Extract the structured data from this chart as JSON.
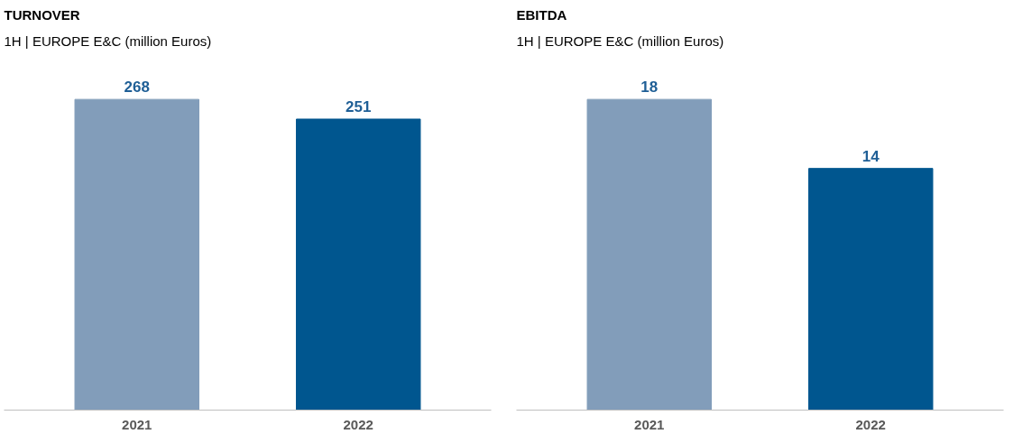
{
  "chart_data": [
    {
      "type": "bar",
      "title": "TURNOVER",
      "subtitle": "1H | EUROPE E&C (million Euros)",
      "categories": [
        "2021",
        "2022"
      ],
      "values": [
        268,
        251
      ],
      "colors": [
        "#829dba",
        "#00568f"
      ],
      "data_labels": true,
      "grid": false
    },
    {
      "type": "bar",
      "title": "EBITDA",
      "subtitle": "1H | EUROPE E&C (million Euros)",
      "categories": [
        "2021",
        "2022"
      ],
      "values": [
        18,
        14
      ],
      "colors": [
        "#829dba",
        "#00568f"
      ],
      "data_labels": true,
      "grid": false
    }
  ]
}
